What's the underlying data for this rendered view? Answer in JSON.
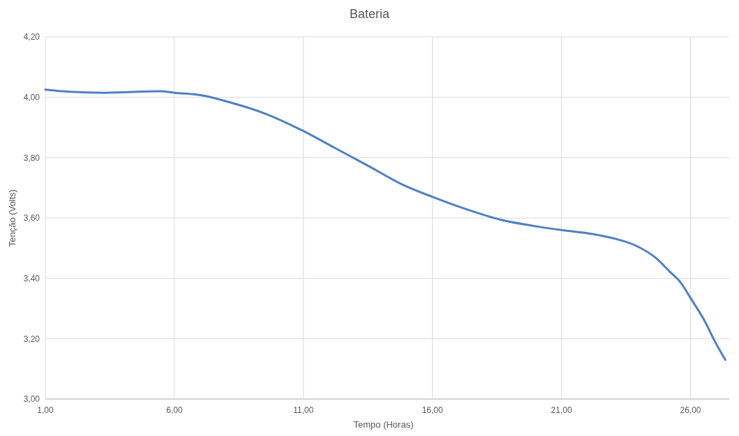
{
  "chart_data": {
    "type": "line",
    "title": "Bateria",
    "xlabel": "Tempo (Horas)",
    "ylabel": "Tenção (Volts)",
    "xlim": [
      1,
      27.5
    ],
    "ylim": [
      3,
      4.2
    ],
    "xticks": [
      {
        "value": 1,
        "label": "1,00"
      },
      {
        "value": 6,
        "label": "6,00"
      },
      {
        "value": 11,
        "label": "11,00"
      },
      {
        "value": 16,
        "label": "16,00"
      },
      {
        "value": 21,
        "label": "21,00"
      },
      {
        "value": 26,
        "label": "26,00"
      }
    ],
    "yticks": [
      {
        "value": 3,
        "label": "3,00"
      },
      {
        "value": 3.2,
        "label": "3,20"
      },
      {
        "value": 3.4,
        "label": "3,40"
      },
      {
        "value": 3.6,
        "label": "3,60"
      },
      {
        "value": 3.8,
        "label": "3,80"
      },
      {
        "value": 4,
        "label": "4,00"
      },
      {
        "value": 4.2,
        "label": "4,20"
      }
    ],
    "grid": true,
    "marker": "none",
    "line_style": "solid",
    "x": [
      1,
      1.95,
      3.3,
      5.46,
      6,
      7.08,
      8.16,
      9.51,
      11,
      12.2,
      13.57,
      14.9,
      16,
      17.35,
      18.7,
      20.05,
      21,
      22.2,
      23,
      23.84,
      24.65,
      25.2,
      25.6,
      26,
      26.54,
      26.95,
      27.35
    ],
    "series": [
      {
        "color": "#4f7fc4",
        "values": [
          4.025,
          4.018,
          4.015,
          4.02,
          4.015,
          4.006,
          3.983,
          3.946,
          3.888,
          3.833,
          3.77,
          3.708,
          3.67,
          3.628,
          3.593,
          3.572,
          3.56,
          3.547,
          3.533,
          3.51,
          3.468,
          3.422,
          3.388,
          3.335,
          3.26,
          3.19,
          3.13
        ]
      }
    ]
  }
}
